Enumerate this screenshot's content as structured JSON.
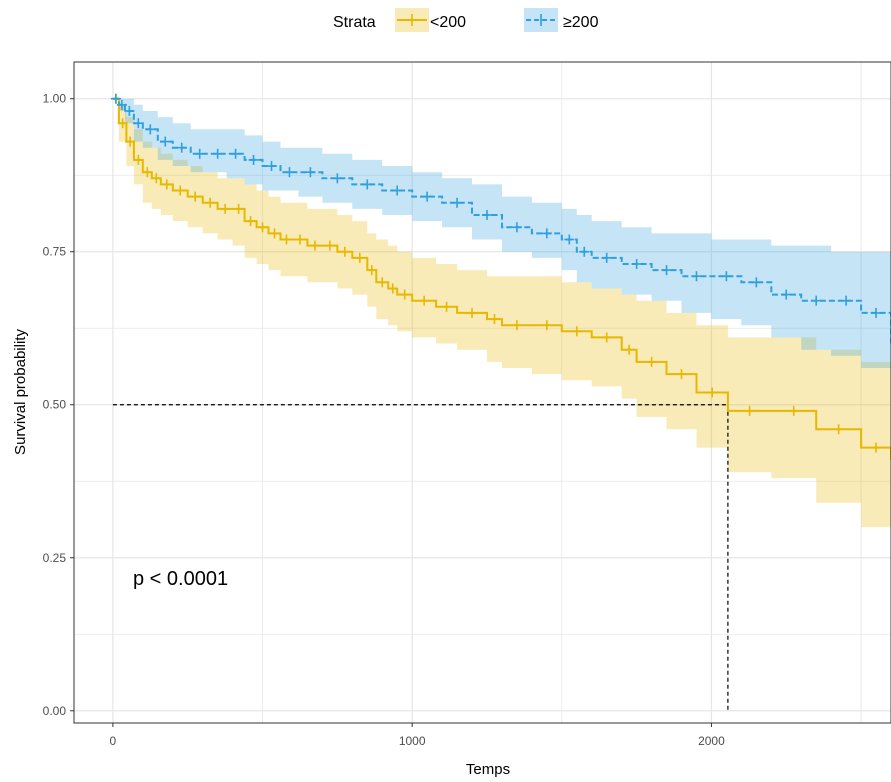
{
  "chart_data": {
    "type": "line",
    "xlabel": "Temps",
    "ylabel": "Survival probability",
    "xlim": [
      -130,
      2600
    ],
    "ylim": [
      -0.02,
      1.06
    ],
    "xticks": [
      0,
      1000,
      2000
    ],
    "yticks": [
      0,
      0.25,
      0.5,
      0.75,
      1.0
    ],
    "xtick_labels": [
      "0",
      "1000",
      "2000"
    ],
    "ytick_labels": [
      "0.00",
      "0.25",
      "0.50",
      "0.75",
      "1.00"
    ],
    "grid": true,
    "legend": {
      "title": "Strata",
      "position": "top"
    },
    "annotation": "p < 0.0001",
    "median_line": {
      "x": 2055,
      "y": 0.5
    },
    "series": [
      {
        "name": "<200",
        "color": "#E7B800",
        "line_style": "solid",
        "x": [
          0,
          20,
          45,
          70,
          100,
          130,
          160,
          200,
          250,
          300,
          350,
          400,
          440,
          480,
          520,
          560,
          600,
          650,
          700,
          750,
          800,
          850,
          880,
          920,
          950,
          1000,
          1080,
          1150,
          1250,
          1300,
          1400,
          1500,
          1600,
          1700,
          1750,
          1850,
          1950,
          2055,
          2200,
          2350,
          2500,
          2600
        ],
        "y": [
          1.0,
          0.96,
          0.93,
          0.9,
          0.88,
          0.87,
          0.86,
          0.85,
          0.84,
          0.83,
          0.82,
          0.82,
          0.8,
          0.79,
          0.78,
          0.77,
          0.77,
          0.76,
          0.76,
          0.75,
          0.74,
          0.72,
          0.7,
          0.69,
          0.68,
          0.67,
          0.66,
          0.65,
          0.64,
          0.63,
          0.63,
          0.62,
          0.61,
          0.59,
          0.57,
          0.55,
          0.52,
          0.49,
          0.49,
          0.46,
          0.43,
          0.41
        ],
        "ci_upper": [
          1.0,
          0.99,
          0.97,
          0.95,
          0.93,
          0.92,
          0.91,
          0.9,
          0.89,
          0.88,
          0.87,
          0.87,
          0.86,
          0.85,
          0.84,
          0.83,
          0.83,
          0.82,
          0.82,
          0.81,
          0.8,
          0.78,
          0.77,
          0.76,
          0.75,
          0.74,
          0.73,
          0.72,
          0.71,
          0.71,
          0.71,
          0.7,
          0.69,
          0.68,
          0.67,
          0.65,
          0.63,
          0.61,
          0.61,
          0.59,
          0.57,
          0.55
        ],
        "ci_lower": [
          1.0,
          0.93,
          0.89,
          0.86,
          0.83,
          0.82,
          0.81,
          0.8,
          0.79,
          0.78,
          0.77,
          0.76,
          0.74,
          0.73,
          0.72,
          0.71,
          0.71,
          0.7,
          0.7,
          0.69,
          0.68,
          0.66,
          0.64,
          0.63,
          0.62,
          0.61,
          0.6,
          0.59,
          0.57,
          0.56,
          0.55,
          0.54,
          0.53,
          0.51,
          0.48,
          0.46,
          0.43,
          0.39,
          0.38,
          0.34,
          0.3,
          0.28
        ]
      },
      {
        "name": "≥200",
        "color": "#2E9FDF",
        "line_style": "dashed",
        "x": [
          0,
          20,
          40,
          70,
          100,
          150,
          200,
          260,
          320,
          380,
          440,
          500,
          560,
          620,
          700,
          800,
          900,
          1000,
          1100,
          1200,
          1300,
          1400,
          1500,
          1550,
          1600,
          1700,
          1800,
          1900,
          2000,
          2100,
          2200,
          2300,
          2400,
          2500,
          2600
        ],
        "y": [
          1.0,
          0.99,
          0.98,
          0.96,
          0.95,
          0.93,
          0.92,
          0.91,
          0.91,
          0.91,
          0.9,
          0.89,
          0.88,
          0.88,
          0.87,
          0.86,
          0.85,
          0.84,
          0.83,
          0.81,
          0.79,
          0.78,
          0.77,
          0.75,
          0.74,
          0.73,
          0.72,
          0.71,
          0.71,
          0.7,
          0.68,
          0.67,
          0.67,
          0.65,
          0.6
        ],
        "ci_upper": [
          1.0,
          1.0,
          1.0,
          0.99,
          0.98,
          0.97,
          0.96,
          0.95,
          0.95,
          0.95,
          0.94,
          0.93,
          0.92,
          0.92,
          0.91,
          0.9,
          0.89,
          0.88,
          0.87,
          0.86,
          0.84,
          0.83,
          0.82,
          0.81,
          0.8,
          0.79,
          0.78,
          0.78,
          0.77,
          0.77,
          0.76,
          0.76,
          0.75,
          0.75,
          0.74
        ],
        "ci_lower": [
          1.0,
          0.98,
          0.96,
          0.93,
          0.92,
          0.9,
          0.89,
          0.88,
          0.88,
          0.87,
          0.86,
          0.85,
          0.85,
          0.84,
          0.83,
          0.82,
          0.81,
          0.8,
          0.79,
          0.77,
          0.75,
          0.74,
          0.72,
          0.7,
          0.69,
          0.68,
          0.67,
          0.65,
          0.64,
          0.63,
          0.61,
          0.59,
          0.58,
          0.56,
          0.52
        ]
      }
    ]
  }
}
